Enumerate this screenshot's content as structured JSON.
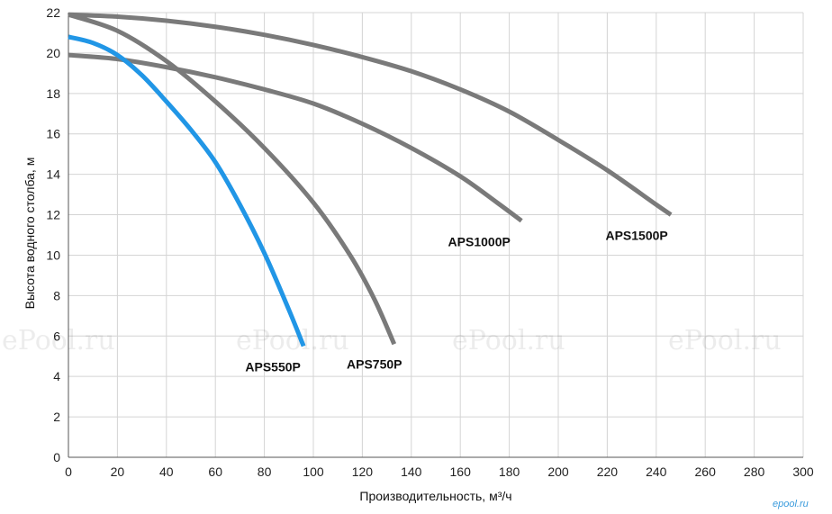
{
  "chart_data": {
    "type": "line",
    "title": "",
    "xlabel": "Производительность, м³/ч",
    "ylabel": "Высота водного столба, м",
    "xlim": [
      0,
      300
    ],
    "ylim": [
      0,
      22
    ],
    "xticks": [
      0,
      20,
      40,
      60,
      80,
      100,
      120,
      140,
      160,
      180,
      200,
      220,
      240,
      260,
      280,
      300
    ],
    "yticks": [
      0,
      2,
      4,
      6,
      8,
      10,
      12,
      14,
      16,
      18,
      20,
      22
    ],
    "grid": true,
    "legend": "none",
    "series": [
      {
        "name": "APS550P",
        "color": "#2196e6",
        "points": [
          [
            0,
            20.8
          ],
          [
            10,
            20.5
          ],
          [
            20,
            19.9
          ],
          [
            30,
            18.9
          ],
          [
            40,
            17.6
          ],
          [
            50,
            16.2
          ],
          [
            60,
            14.6
          ],
          [
            70,
            12.5
          ],
          [
            80,
            10.1
          ],
          [
            90,
            7.3
          ],
          [
            96,
            5.5
          ]
        ]
      },
      {
        "name": "APS750P",
        "color": "#7a7a7a",
        "points": [
          [
            0,
            21.9
          ],
          [
            20,
            21.1
          ],
          [
            40,
            19.6
          ],
          [
            60,
            17.6
          ],
          [
            80,
            15.3
          ],
          [
            100,
            12.6
          ],
          [
            115,
            10.0
          ],
          [
            125,
            7.8
          ],
          [
            133,
            5.6
          ]
        ]
      },
      {
        "name": "APS1000P",
        "color": "#7a7a7a",
        "points": [
          [
            0,
            19.9
          ],
          [
            20,
            19.7
          ],
          [
            40,
            19.3
          ],
          [
            60,
            18.8
          ],
          [
            80,
            18.2
          ],
          [
            100,
            17.5
          ],
          [
            120,
            16.5
          ],
          [
            140,
            15.3
          ],
          [
            160,
            13.9
          ],
          [
            175,
            12.6
          ],
          [
            185,
            11.7
          ]
        ]
      },
      {
        "name": "APS1500P",
        "color": "#7a7a7a",
        "points": [
          [
            0,
            21.9
          ],
          [
            20,
            21.8
          ],
          [
            40,
            21.6
          ],
          [
            60,
            21.3
          ],
          [
            80,
            20.9
          ],
          [
            100,
            20.4
          ],
          [
            120,
            19.8
          ],
          [
            140,
            19.1
          ],
          [
            160,
            18.2
          ],
          [
            180,
            17.1
          ],
          [
            200,
            15.7
          ],
          [
            220,
            14.2
          ],
          [
            240,
            12.5
          ],
          [
            246,
            12.0
          ]
        ]
      }
    ]
  },
  "watermark": "ePool.ru",
  "logo": "epool.ru"
}
